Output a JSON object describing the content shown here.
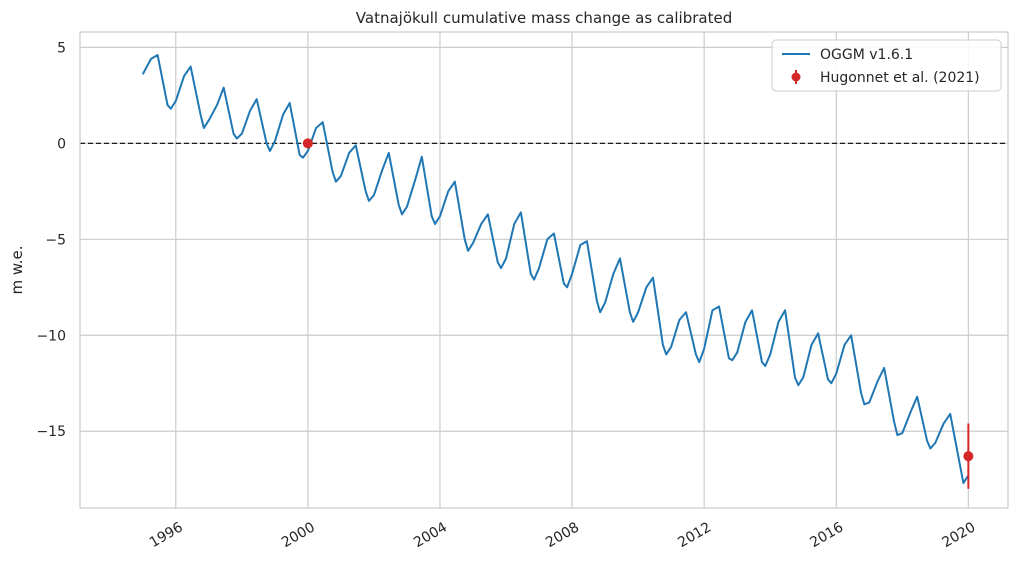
{
  "chart_data": {
    "type": "line",
    "title": "Vatnajökull cumulative mass change as calibrated",
    "xlabel": "",
    "ylabel": "m w.e.",
    "xlim": [
      1993.1,
      2021.2
    ],
    "ylim": [
      -19,
      5.8
    ],
    "grid": true,
    "legend_position": "top-right",
    "x_ticks": [
      1996,
      2000,
      2004,
      2008,
      2012,
      2016,
      2020
    ],
    "x_tick_labels": [
      "1996",
      "2000",
      "2004",
      "2008",
      "2012",
      "2016",
      "2020"
    ],
    "y_ticks": [
      5,
      0,
      -5,
      -10,
      -15
    ],
    "y_tick_labels": [
      "5",
      "0",
      "−5",
      "−10",
      "−15"
    ],
    "reference_line": {
      "y": 0,
      "style": "dashed",
      "color": "#000000"
    },
    "series": [
      {
        "name": "OGGM v1.6.1",
        "color": "#1f77b4",
        "kind": "line",
        "points": [
          [
            1995.0,
            3.6
          ],
          [
            1995.25,
            4.4
          ],
          [
            1995.45,
            4.6
          ],
          [
            1995.75,
            2.0
          ],
          [
            1995.85,
            1.8
          ],
          [
            1996.0,
            2.2
          ],
          [
            1996.25,
            3.5
          ],
          [
            1996.45,
            4.0
          ],
          [
            1996.75,
            1.5
          ],
          [
            1996.85,
            0.8
          ],
          [
            1997.0,
            1.2
          ],
          [
            1997.25,
            2.0
          ],
          [
            1997.45,
            2.9
          ],
          [
            1997.75,
            0.5
          ],
          [
            1997.85,
            0.25
          ],
          [
            1998.0,
            0.5
          ],
          [
            1998.25,
            1.7
          ],
          [
            1998.45,
            2.3
          ],
          [
            1998.75,
            0.0
          ],
          [
            1998.85,
            -0.4
          ],
          [
            1999.0,
            0.1
          ],
          [
            1999.25,
            1.5
          ],
          [
            1999.45,
            2.1
          ],
          [
            1999.75,
            -0.6
          ],
          [
            1999.85,
            -0.75
          ],
          [
            2000.0,
            -0.4
          ],
          [
            2000.25,
            0.8
          ],
          [
            2000.45,
            1.1
          ],
          [
            2000.75,
            -1.5
          ],
          [
            2000.85,
            -2.0
          ],
          [
            2001.0,
            -1.7
          ],
          [
            2001.25,
            -0.5
          ],
          [
            2001.45,
            -0.1
          ],
          [
            2001.75,
            -2.5
          ],
          [
            2001.85,
            -3.0
          ],
          [
            2002.0,
            -2.7
          ],
          [
            2002.25,
            -1.4
          ],
          [
            2002.45,
            -0.5
          ],
          [
            2002.75,
            -3.2
          ],
          [
            2002.85,
            -3.7
          ],
          [
            2003.0,
            -3.3
          ],
          [
            2003.25,
            -1.9
          ],
          [
            2003.45,
            -0.7
          ],
          [
            2003.75,
            -3.8
          ],
          [
            2003.85,
            -4.2
          ],
          [
            2004.0,
            -3.8
          ],
          [
            2004.25,
            -2.5
          ],
          [
            2004.45,
            -2.0
          ],
          [
            2004.75,
            -5.0
          ],
          [
            2004.85,
            -5.6
          ],
          [
            2005.0,
            -5.2
          ],
          [
            2005.25,
            -4.2
          ],
          [
            2005.45,
            -3.7
          ],
          [
            2005.75,
            -6.2
          ],
          [
            2005.85,
            -6.5
          ],
          [
            2006.0,
            -6.0
          ],
          [
            2006.25,
            -4.2
          ],
          [
            2006.45,
            -3.6
          ],
          [
            2006.75,
            -6.8
          ],
          [
            2006.85,
            -7.1
          ],
          [
            2007.0,
            -6.5
          ],
          [
            2007.25,
            -5.0
          ],
          [
            2007.45,
            -4.7
          ],
          [
            2007.75,
            -7.3
          ],
          [
            2007.85,
            -7.5
          ],
          [
            2008.0,
            -6.8
          ],
          [
            2008.25,
            -5.3
          ],
          [
            2008.45,
            -5.1
          ],
          [
            2008.75,
            -8.2
          ],
          [
            2008.85,
            -8.8
          ],
          [
            2009.0,
            -8.3
          ],
          [
            2009.25,
            -6.8
          ],
          [
            2009.45,
            -6.0
          ],
          [
            2009.75,
            -8.8
          ],
          [
            2009.85,
            -9.3
          ],
          [
            2010.0,
            -8.8
          ],
          [
            2010.25,
            -7.5
          ],
          [
            2010.45,
            -7.0
          ],
          [
            2010.75,
            -10.5
          ],
          [
            2010.85,
            -11.0
          ],
          [
            2011.0,
            -10.6
          ],
          [
            2011.25,
            -9.2
          ],
          [
            2011.45,
            -8.8
          ],
          [
            2011.75,
            -11.0
          ],
          [
            2011.85,
            -11.4
          ],
          [
            2012.0,
            -10.7
          ],
          [
            2012.25,
            -8.7
          ],
          [
            2012.45,
            -8.5
          ],
          [
            2012.75,
            -11.2
          ],
          [
            2012.85,
            -11.3
          ],
          [
            2013.0,
            -10.9
          ],
          [
            2013.25,
            -9.3
          ],
          [
            2013.45,
            -8.7
          ],
          [
            2013.75,
            -11.4
          ],
          [
            2013.85,
            -11.6
          ],
          [
            2014.0,
            -11.0
          ],
          [
            2014.25,
            -9.3
          ],
          [
            2014.45,
            -8.7
          ],
          [
            2014.75,
            -12.2
          ],
          [
            2014.85,
            -12.6
          ],
          [
            2015.0,
            -12.2
          ],
          [
            2015.25,
            -10.5
          ],
          [
            2015.45,
            -9.9
          ],
          [
            2015.75,
            -12.3
          ],
          [
            2015.85,
            -12.5
          ],
          [
            2016.0,
            -12.0
          ],
          [
            2016.25,
            -10.5
          ],
          [
            2016.45,
            -10.0
          ],
          [
            2016.75,
            -13.0
          ],
          [
            2016.85,
            -13.6
          ],
          [
            2017.0,
            -13.5
          ],
          [
            2017.25,
            -12.4
          ],
          [
            2017.45,
            -11.7
          ],
          [
            2017.75,
            -14.5
          ],
          [
            2017.85,
            -15.2
          ],
          [
            2018.0,
            -15.1
          ],
          [
            2018.25,
            -14.0
          ],
          [
            2018.45,
            -13.2
          ],
          [
            2018.75,
            -15.5
          ],
          [
            2018.85,
            -15.9
          ],
          [
            2019.0,
            -15.6
          ],
          [
            2019.25,
            -14.6
          ],
          [
            2019.45,
            -14.1
          ],
          [
            2019.75,
            -16.8
          ],
          [
            2019.85,
            -17.7
          ],
          [
            2020.0,
            -17.3
          ]
        ]
      },
      {
        "name": "Hugonnet et al. (2021)",
        "color": "#d62728",
        "kind": "errorbar",
        "points": [
          {
            "x": 2000.0,
            "y": 0.0,
            "err": 0.0
          },
          {
            "x": 2020.0,
            "y": -16.3,
            "err": 1.7
          }
        ]
      }
    ]
  }
}
